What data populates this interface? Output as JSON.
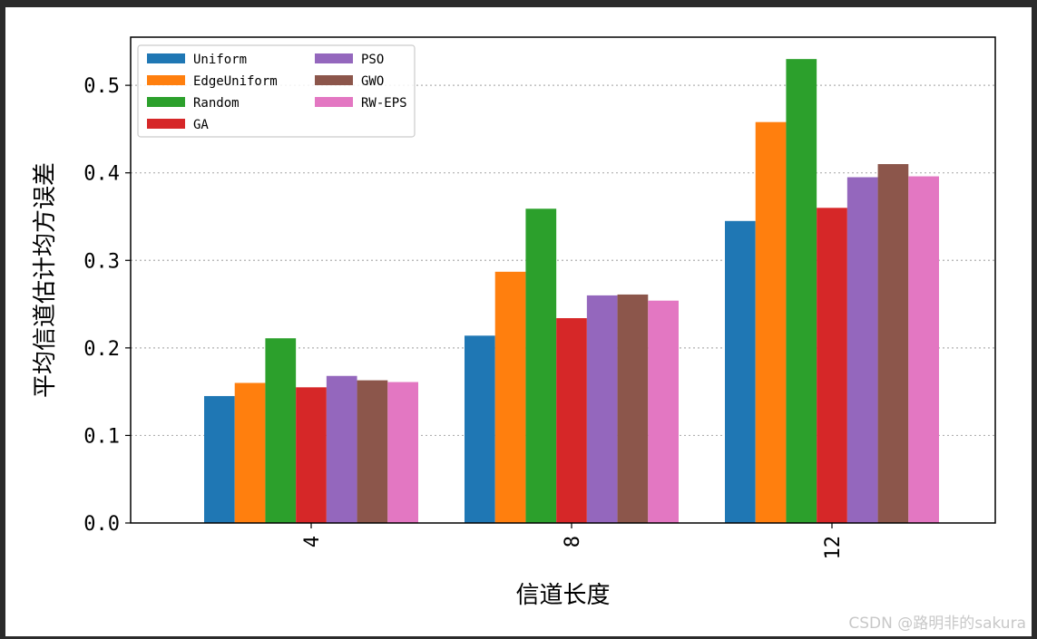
{
  "chart_data": {
    "type": "bar",
    "title": "",
    "xlabel": "信道长度",
    "ylabel": "平均信道估计均方误差",
    "categories": [
      "4",
      "8",
      "12"
    ],
    "ylim": [
      0,
      0.555
    ],
    "yticks": [
      "0.0",
      "0.1",
      "0.2",
      "0.3",
      "0.4",
      "0.5"
    ],
    "grid": "y-dotted",
    "legend_position": "top-left",
    "series": [
      {
        "name": "Uniform",
        "color": "#1f77b4",
        "values": [
          0.145,
          0.214,
          0.345
        ]
      },
      {
        "name": "EdgeUniform",
        "color": "#ff7f0e",
        "values": [
          0.16,
          0.287,
          0.458
        ]
      },
      {
        "name": "Random",
        "color": "#2ca02c",
        "values": [
          0.211,
          0.359,
          0.53
        ]
      },
      {
        "name": "GA",
        "color": "#d62728",
        "values": [
          0.155,
          0.234,
          0.36
        ]
      },
      {
        "name": "PSO",
        "color": "#9467bd",
        "values": [
          0.168,
          0.26,
          0.395
        ]
      },
      {
        "name": "GWO",
        "color": "#8c564b",
        "values": [
          0.163,
          0.261,
          0.41
        ]
      },
      {
        "name": "RW-EPS",
        "color": "#e377c2",
        "values": [
          0.161,
          0.254,
          0.396
        ]
      }
    ]
  },
  "watermark": "CSDN @路明非的sakura"
}
